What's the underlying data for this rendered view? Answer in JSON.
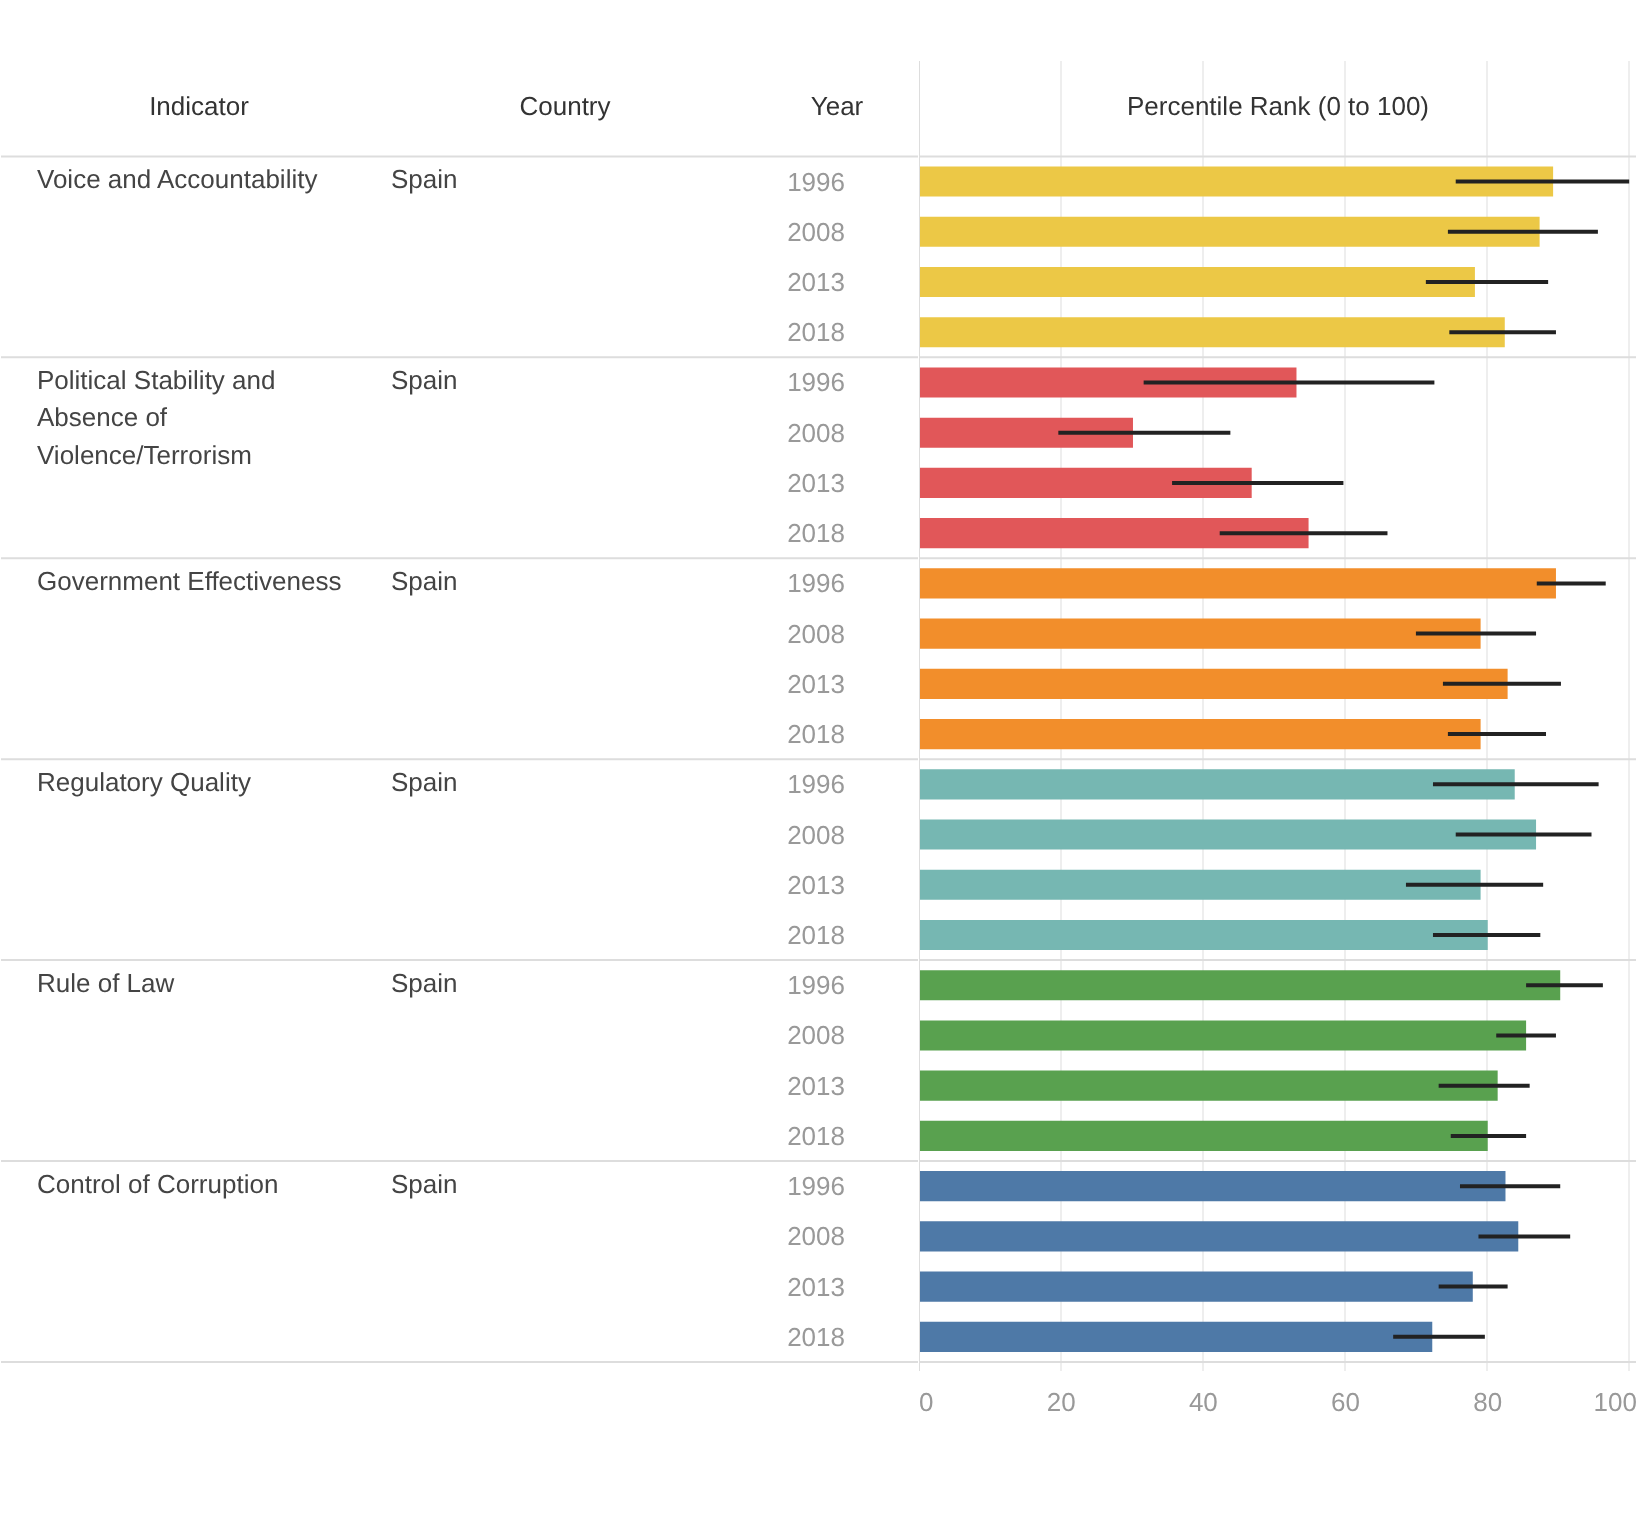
{
  "chart_data": {
    "type": "bar",
    "orientation": "horizontal",
    "title": "Percentile Rank (0 to 100)",
    "categories": [
      "1996",
      "2008",
      "2013",
      "2018",
      "1996",
      "2008",
      "2013",
      "2018",
      "1996",
      "2008",
      "2013",
      "2018",
      "1996",
      "2008",
      "2013",
      "2018",
      "1996",
      "2008",
      "2013",
      "2018",
      "1996",
      "2008",
      "2013",
      "2018"
    ],
    "series": [
      {
        "color": "#ecc846",
        "values": [
          89.2,
          87.3,
          78.2,
          82.4,
          null,
          null,
          null,
          null,
          null,
          null,
          null,
          null,
          null,
          null,
          null,
          null,
          null,
          null,
          null,
          null,
          null,
          null,
          null,
          null
        ],
        "errors": [
          [
            75.5,
            99.9
          ],
          [
            74.4,
            95.5
          ],
          [
            71.3,
            88.5
          ],
          [
            74.6,
            89.6
          ],
          null,
          null,
          null,
          null,
          null,
          null,
          null,
          null,
          null,
          null,
          null,
          null,
          null,
          null,
          null,
          null,
          null,
          null,
          null,
          null
        ]
      },
      {
        "color": "#e15759",
        "values": [
          null,
          null,
          null,
          null,
          53.1,
          30.1,
          46.8,
          54.8,
          null,
          null,
          null,
          null,
          null,
          null,
          null,
          null,
          null,
          null,
          null,
          null,
          null,
          null,
          null,
          null
        ],
        "errors": [
          null,
          null,
          null,
          null,
          [
            31.6,
            72.5
          ],
          [
            19.6,
            43.8
          ],
          [
            35.6,
            59.7
          ],
          [
            42.3,
            65.9
          ],
          null,
          null,
          null,
          null,
          null,
          null,
          null,
          null,
          null,
          null,
          null,
          null,
          null,
          null,
          null,
          null
        ]
      },
      {
        "color": "#f28e2b",
        "values": [
          null,
          null,
          null,
          null,
          null,
          null,
          null,
          null,
          89.6,
          79.0,
          82.8,
          79.0,
          null,
          null,
          null,
          null,
          null,
          null,
          null,
          null,
          null,
          null,
          null,
          null
        ],
        "errors": [
          null,
          null,
          null,
          null,
          null,
          null,
          null,
          null,
          [
            86.9,
            96.6
          ],
          [
            69.9,
            86.8
          ],
          [
            73.7,
            90.3
          ],
          [
            74.4,
            88.2
          ],
          null,
          null,
          null,
          null,
          null,
          null,
          null,
          null,
          null,
          null,
          null,
          null
        ]
      },
      {
        "color": "#76b7b2",
        "values": [
          null,
          null,
          null,
          null,
          null,
          null,
          null,
          null,
          null,
          null,
          null,
          null,
          83.8,
          86.8,
          79.0,
          80.0,
          null,
          null,
          null,
          null,
          null,
          null,
          null,
          null
        ],
        "errors": [
          null,
          null,
          null,
          null,
          null,
          null,
          null,
          null,
          null,
          null,
          null,
          null,
          [
            72.3,
            95.6
          ],
          [
            75.5,
            94.6
          ],
          [
            68.5,
            87.8
          ],
          [
            72.3,
            87.4
          ],
          null,
          null,
          null,
          null,
          null,
          null,
          null,
          null
        ]
      },
      {
        "color": "#59a14f",
        "values": [
          null,
          null,
          null,
          null,
          null,
          null,
          null,
          null,
          null,
          null,
          null,
          null,
          null,
          null,
          null,
          null,
          90.2,
          85.4,
          81.4,
          80.0,
          null,
          null,
          null,
          null
        ],
        "errors": [
          null,
          null,
          null,
          null,
          null,
          null,
          null,
          null,
          null,
          null,
          null,
          null,
          null,
          null,
          null,
          null,
          [
            85.4,
            96.2
          ],
          [
            81.2,
            89.6
          ],
          [
            73.1,
            85.9
          ],
          [
            74.8,
            85.4
          ],
          null,
          null,
          null,
          null
        ]
      },
      {
        "color": "#4e79a7",
        "values": [
          null,
          null,
          null,
          null,
          null,
          null,
          null,
          null,
          null,
          null,
          null,
          null,
          null,
          null,
          null,
          null,
          null,
          null,
          null,
          null,
          82.5,
          84.3,
          77.9,
          72.2
        ],
        "errors": [
          null,
          null,
          null,
          null,
          null,
          null,
          null,
          null,
          null,
          null,
          null,
          null,
          null,
          null,
          null,
          null,
          null,
          null,
          null,
          null,
          [
            76.1,
            90.2
          ],
          [
            78.7,
            91.6
          ],
          [
            73.1,
            82.8
          ],
          [
            66.7,
            79.6
          ]
        ]
      }
    ],
    "xlim": [
      0,
      101
    ],
    "xticks": [
      0,
      20,
      40,
      60,
      80,
      100
    ],
    "grid": "x",
    "annotations": [
      "Indicator",
      "Country",
      "Year",
      "Voice and Accountability",
      "Spain",
      "Political Stability and Absence of Violence/Terrorism",
      "Spain",
      "Government Effectiveness",
      "Spain",
      "Regulatory Quality",
      "Spain",
      "Rule of Law",
      "Spain",
      "Control of Corruption",
      "Spain"
    ]
  }
}
